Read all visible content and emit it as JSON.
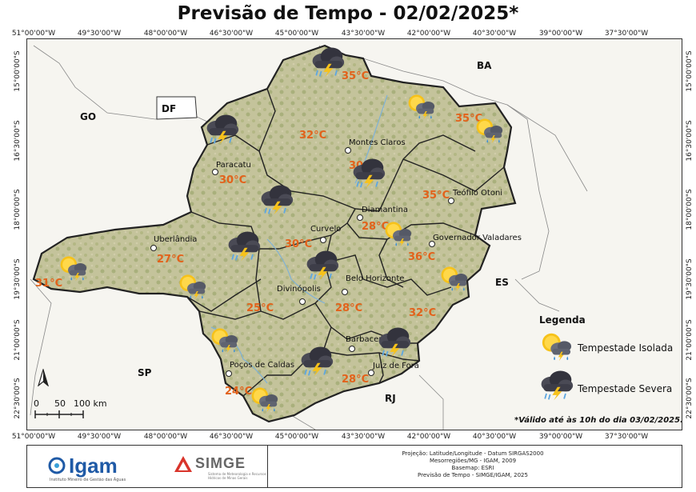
{
  "title": "Previsão de Tempo - 02/02/2025*",
  "axes": {
    "lon_labels": [
      "51°00'00\"W",
      "49°30'00\"W",
      "48°00'00\"W",
      "46°30'00\"W",
      "45°00'00\"W",
      "43°30'00\"W",
      "42°00'00\"W",
      "40°30'00\"W",
      "39°00'00\"W",
      "37°30'00\"W"
    ],
    "lat_labels": [
      "15°00'00\"S",
      "16°30'00\"S",
      "18°00'00\"S",
      "19°30'00\"S",
      "21°00'00\"S",
      "22°30'00\"S"
    ]
  },
  "states": {
    "ba": "BA",
    "df": "DF",
    "go": "GO",
    "es": "ES",
    "sp": "SP",
    "rj": "RJ"
  },
  "cities": {
    "montes_claros": "Montes Claros",
    "paracatu": "Paracatu",
    "teofilo_otoni": "Teófilo Otoni",
    "diamantina": "Diamantina",
    "curvelo": "Curvelo",
    "uberlandia": "Uberlândia",
    "governador_valadares": "Governador Valadares",
    "divinopolis": "Divinópolis",
    "belo_horizonte": "Belo Horizonte",
    "barbacena": "Barbacena",
    "pocos_de_caldas": "Poços de Caldas",
    "juiz_de_fora": "Juiz de Fora"
  },
  "temperatures": {
    "norte": "35°C",
    "nordeste": "35°C",
    "norte_central": "32°C",
    "noroeste": "30°C",
    "jequitinhonha": "30°C",
    "vale_mucuri": "35°C",
    "central": "30°C",
    "diamantina": "28°C",
    "rio_doce": "36°C",
    "triangulo_oeste": "31°C",
    "triangulo": "27°C",
    "oeste": "25°C",
    "metropolitana": "28°C",
    "leste": "32°C",
    "sul": "24°C",
    "zona_mata": "28°C"
  },
  "forecast_icons": {
    "isolated": "sun-cloud-rain-icon",
    "severe": "storm-cloud-lightning-icon"
  },
  "legend": {
    "title": "Legenda",
    "isolated_label": "Tempestade Isolada",
    "severe_label": "Tempestade Severa"
  },
  "scale": {
    "t0": "0",
    "t50": "50",
    "t100": "100 km"
  },
  "note": "*Válido até às 10h do dia 03/02/2025.",
  "footer": {
    "igam_logo": "Igam",
    "igam_subtitle": "Instituto Mineiro de Gestão das Águas",
    "simge_logo": "SIMGE",
    "simge_subtitle": "Sistema de Meteorologia e Recursos Hídricos de Minas Gerais",
    "credits": [
      "Projeção: Latitude/Longitude - Datum SIRGAS2000",
      "Mesorregiões/MG - IGAM, 2009",
      "Basemap: ESRI",
      "Previsão de Tempo - SIMGE/IGAM, 2025"
    ]
  },
  "colors": {
    "temperature": "#e2621b",
    "terrain": "#c9c7a0",
    "border": "#222222"
  }
}
